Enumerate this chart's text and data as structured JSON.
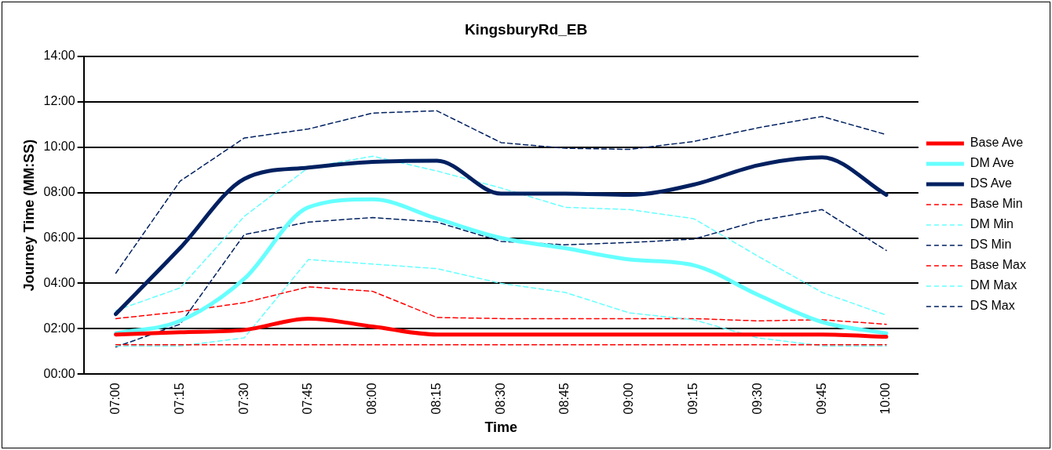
{
  "chart_data": {
    "type": "line",
    "title": "KingsburyRd_EB",
    "xlabel": "Time",
    "ylabel": "Journey Time (MM:SS)",
    "categories": [
      "07:00",
      "07:15",
      "07:30",
      "07:45",
      "08:00",
      "08:15",
      "08:30",
      "08:45",
      "09:00",
      "09:15",
      "09:30",
      "09:45",
      "10:00"
    ],
    "ylim": [
      0,
      14
    ],
    "yticks": [
      {
        "value": 0,
        "label": "00:00"
      },
      {
        "value": 2,
        "label": "02:00"
      },
      {
        "value": 4,
        "label": "04:00"
      },
      {
        "value": 6,
        "label": "06:00"
      },
      {
        "value": 8,
        "label": "08:00"
      },
      {
        "value": 10,
        "label": "10:00"
      },
      {
        "value": 12,
        "label": "12:00"
      },
      {
        "value": 14,
        "label": "14:00"
      }
    ],
    "grid": "y",
    "legend": "right",
    "marker": "none",
    "series": [
      {
        "name": "Base Ave",
        "color": "#ff0000",
        "line_style": "solid",
        "values": [
          1.75,
          1.85,
          1.95,
          2.45,
          2.1,
          1.75,
          1.75,
          1.75,
          1.75,
          1.75,
          1.75,
          1.75,
          1.65
        ]
      },
      {
        "name": "DM Ave",
        "color": "#66ffff",
        "line_style": "solid",
        "values": [
          1.8,
          2.35,
          4.2,
          7.35,
          7.7,
          6.85,
          6.0,
          5.55,
          5.05,
          4.8,
          3.5,
          2.3,
          1.8
        ]
      },
      {
        "name": "DS Ave",
        "color": "#002060",
        "line_style": "solid",
        "values": [
          2.65,
          5.55,
          8.6,
          9.1,
          9.35,
          9.4,
          7.95,
          7.95,
          7.9,
          8.35,
          9.2,
          9.55,
          7.9
        ]
      },
      {
        "name": "Base Min",
        "color": "#ff0000",
        "line_style": "dashed",
        "values": [
          1.3,
          1.3,
          1.3,
          1.3,
          1.3,
          1.3,
          1.3,
          1.3,
          1.3,
          1.3,
          1.3,
          1.3,
          1.3
        ]
      },
      {
        "name": "DM Min",
        "color": "#66ffff",
        "line_style": "dashed",
        "values": [
          1.25,
          1.25,
          1.6,
          5.05,
          4.85,
          4.65,
          4.0,
          3.6,
          2.7,
          2.4,
          1.6,
          1.25,
          1.25
        ]
      },
      {
        "name": "DS Min",
        "color": "#002060",
        "line_style": "dashed",
        "values": [
          1.2,
          2.2,
          6.15,
          6.7,
          6.9,
          6.7,
          5.85,
          5.7,
          5.8,
          5.95,
          6.75,
          7.25,
          5.45
        ]
      },
      {
        "name": "Base Max",
        "color": "#ff0000",
        "line_style": "dashed",
        "values": [
          2.45,
          2.75,
          3.15,
          3.85,
          3.65,
          2.5,
          2.45,
          2.45,
          2.45,
          2.45,
          2.35,
          2.4,
          2.2
        ]
      },
      {
        "name": "DM Max",
        "color": "#66ffff",
        "line_style": "dashed",
        "values": [
          2.8,
          3.8,
          6.95,
          9.1,
          9.6,
          8.95,
          8.2,
          7.35,
          7.25,
          6.85,
          5.2,
          3.6,
          2.6
        ]
      },
      {
        "name": "DS Max",
        "color": "#002060",
        "line_style": "dashed",
        "values": [
          4.45,
          8.5,
          10.4,
          10.8,
          11.5,
          11.6,
          10.2,
          9.95,
          9.9,
          10.25,
          10.85,
          11.35,
          10.55
        ]
      }
    ]
  }
}
